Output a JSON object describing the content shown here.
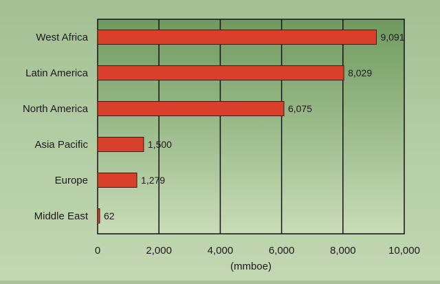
{
  "chart_data": {
    "type": "bar",
    "orientation": "horizontal",
    "categories": [
      "West Africa",
      "Latin America",
      "North America",
      "Asia Pacific",
      "Europe",
      "Middle East"
    ],
    "values": [
      9091,
      8029,
      6075,
      1500,
      1279,
      62
    ],
    "value_labels": [
      "9,091",
      "8,029",
      "6,075",
      "1,500",
      "1,279",
      "62"
    ],
    "xlabel": "(mmboe)",
    "ylabel": "",
    "xlim": [
      0,
      10000
    ],
    "xticks": [
      0,
      2000,
      4000,
      6000,
      8000,
      10000
    ],
    "xtick_labels": [
      "0",
      "2,000",
      "4,000",
      "6,000",
      "8,000",
      "10,000"
    ],
    "grid": "vertical",
    "legend": "none",
    "colors": {
      "bar_fill": "#d8402b",
      "bar_stroke": "#3a1a12",
      "plot_bg_top": "#6f9a5e",
      "plot_bg_bottom": "#c9dcb8",
      "grid": "#111111",
      "axis": "#111111"
    }
  }
}
